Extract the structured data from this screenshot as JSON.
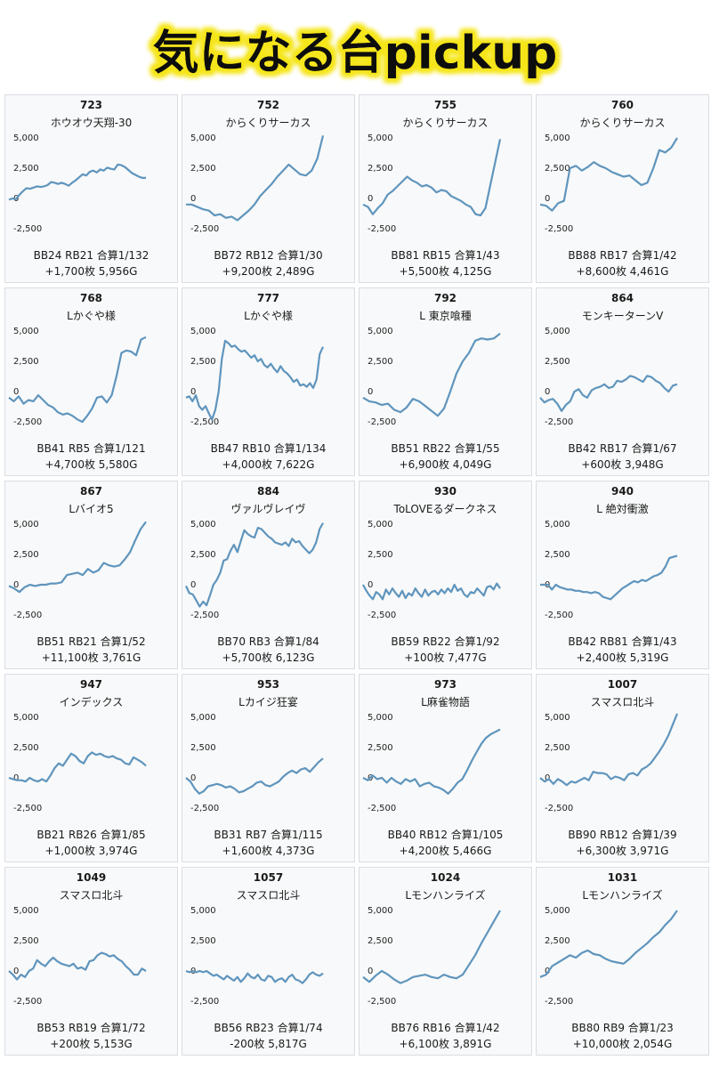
{
  "header": {
    "title": "気になる台pickup",
    "title_color": "#111111",
    "glow_color": "#f5e51a"
  },
  "style": {
    "line_color": "#5f95bd",
    "card_bg": "#f8f9fa",
    "card_border": "#d9dde2"
  },
  "chart_data": [
    {
      "type": "line",
      "machine_no": "723",
      "machine_name": "ホウオウ天翔-30",
      "summary": "BB24 RB21 合算1/132",
      "result": "+1,700枚 5,956G",
      "ylim": [
        -2500,
        5000
      ],
      "yticks": [
        "5,000",
        "2,500",
        "0",
        "-2,500"
      ],
      "values": [
        -100,
        0,
        -50,
        300,
        600,
        850,
        800,
        900,
        1000,
        950,
        1000,
        1100,
        1350,
        1300,
        1200,
        1300,
        1200,
        1050,
        1300,
        1500,
        1750,
        2000,
        1900,
        2200,
        2300,
        2150,
        2400,
        2300,
        2550,
        2450,
        2400,
        2800,
        2750,
        2600,
        2350,
        2100,
        1950,
        1800,
        1700,
        1700
      ]
    },
    {
      "type": "line",
      "machine_no": "752",
      "machine_name": "からくりサーカス",
      "summary": "BB72 RB12 合算1/30",
      "result": "+9,200枚 2,489G",
      "ylim": [
        -2500,
        5000
      ],
      "yticks": [
        "5,000",
        "2,500",
        "0",
        "-2,500"
      ],
      "values": [
        -500,
        -500,
        -700,
        -900,
        -1000,
        -1400,
        -1300,
        -1600,
        -1500,
        -1800,
        -1400,
        -1000,
        -500,
        200,
        700,
        1200,
        1800,
        2300,
        2800,
        2400,
        2000,
        1900,
        2300,
        3300,
        5200
      ]
    },
    {
      "type": "line",
      "machine_no": "755",
      "machine_name": "からくりサーカス",
      "summary": "BB81 RB15 合算1/43",
      "result": "+5,500枚 4,125G",
      "ylim": [
        -2500,
        5000
      ],
      "yticks": [
        "5,000",
        "2,500",
        "0",
        "-2,500"
      ],
      "values": [
        -500,
        -700,
        -1300,
        -800,
        -400,
        300,
        600,
        1000,
        1400,
        1800,
        1500,
        1300,
        1000,
        1100,
        900,
        500,
        700,
        600,
        200,
        0,
        -200,
        -500,
        -700,
        -1300,
        -1400,
        -800,
        1100,
        3000,
        4900
      ]
    },
    {
      "type": "line",
      "machine_no": "760",
      "machine_name": "からくりサーカス",
      "summary": "BB88 RB17 合算1/42",
      "result": "+8,600枚 4,461G",
      "ylim": [
        -2500,
        5000
      ],
      "yticks": [
        "5,000",
        "2,500",
        "0",
        "-2,500"
      ],
      "values": [
        -500,
        -600,
        -1000,
        -400,
        -200,
        2500,
        2700,
        2300,
        2600,
        3000,
        2700,
        2500,
        2200,
        2000,
        1800,
        1900,
        1500,
        1100,
        1300,
        2500,
        4000,
        3800,
        4200,
        5000
      ]
    },
    {
      "type": "line",
      "machine_no": "768",
      "machine_name": "Lかぐや様",
      "summary": "BB41 RB5 合算1/121",
      "result": "+4,700枚 5,580G",
      "ylim": [
        -2500,
        5000
      ],
      "yticks": [
        "5,000",
        "2,500",
        "0",
        "-2,500"
      ],
      "values": [
        -500,
        -800,
        -400,
        -1000,
        -700,
        -800,
        -300,
        -700,
        -1100,
        -1300,
        -1700,
        -1900,
        -1800,
        -2000,
        -2300,
        -2500,
        -2000,
        -1400,
        -500,
        -400,
        -900,
        -300,
        1300,
        3200,
        3400,
        3300,
        3000,
        4300,
        4500
      ]
    },
    {
      "type": "line",
      "machine_no": "777",
      "machine_name": "Lかぐや様",
      "summary": "BB47 RB10 合算1/134",
      "result": "+4,000枚 7,622G",
      "ylim": [
        -2500,
        5000
      ],
      "yticks": [
        "5,000",
        "2,500",
        "0",
        "-2,500"
      ],
      "values": [
        -500,
        -400,
        -800,
        -300,
        -1200,
        -1500,
        -1200,
        -1800,
        -2300,
        -1500,
        0,
        2700,
        4200,
        4000,
        3700,
        3800,
        3500,
        3300,
        3400,
        3100,
        2800,
        3000,
        2500,
        2700,
        2200,
        2000,
        2300,
        1900,
        1600,
        2100,
        1700,
        1500,
        1200,
        800,
        1000,
        500,
        600,
        400,
        700,
        300,
        1000,
        3100,
        3700
      ]
    },
    {
      "type": "line",
      "machine_no": "792",
      "machine_name": "L 東京喰種",
      "summary": "BB51 RB22 合算1/55",
      "result": "+6,900枚 4,049G",
      "ylim": [
        -2500,
        5000
      ],
      "yticks": [
        "5,000",
        "2,500",
        "0",
        "-2,500"
      ],
      "values": [
        -500,
        -800,
        -900,
        -1100,
        -1000,
        -1500,
        -1700,
        -1300,
        -600,
        -800,
        -1200,
        -1600,
        -2000,
        -1400,
        0,
        1500,
        2500,
        3200,
        4200,
        4400,
        4300,
        4400,
        4800
      ]
    },
    {
      "type": "line",
      "machine_no": "864",
      "machine_name": "モンキーターンV",
      "summary": "BB42 RB17 合算1/67",
      "result": "+600枚 3,948G",
      "ylim": [
        -2500,
        5000
      ],
      "yticks": [
        "5,000",
        "2,500",
        "0",
        "-2,500"
      ],
      "values": [
        -500,
        -900,
        -700,
        -600,
        -1000,
        -1600,
        -1100,
        -800,
        0,
        200,
        -300,
        -500,
        100,
        300,
        400,
        600,
        300,
        400,
        900,
        800,
        1000,
        1300,
        1200,
        1000,
        800,
        1300,
        1200,
        900,
        700,
        300,
        0,
        500,
        600
      ]
    },
    {
      "type": "line",
      "machine_no": "867",
      "machine_name": "Lバイオ5",
      "summary": "BB51 RB21 合算1/52",
      "result": "+11,100枚 3,761G",
      "ylim": [
        -2500,
        5000
      ],
      "yticks": [
        "5,000",
        "2,500",
        "0",
        "-2,500"
      ],
      "values": [
        -100,
        -300,
        -600,
        -200,
        0,
        -100,
        0,
        0,
        100,
        100,
        200,
        800,
        900,
        1000,
        800,
        1300,
        1000,
        1200,
        1800,
        1600,
        1500,
        1600,
        2100,
        2700,
        3700,
        4600,
        5200
      ]
    },
    {
      "type": "line",
      "machine_no": "884",
      "machine_name": "ヴァルヴレイヴ",
      "summary": "BB70 RB3 合算1/84",
      "result": "+5,700枚 6,123G",
      "ylim": [
        -2500,
        5000
      ],
      "yticks": [
        "5,000",
        "2,500",
        "0",
        "-2,500"
      ],
      "values": [
        -100,
        -700,
        -800,
        -1300,
        -1800,
        -1400,
        -1700,
        -900,
        0,
        400,
        1000,
        2000,
        2100,
        2800,
        3300,
        2700,
        3600,
        4500,
        4200,
        4000,
        3900,
        4700,
        4600,
        4300,
        4000,
        3800,
        3500,
        3400,
        3300,
        3500,
        3200,
        3800,
        3500,
        3600,
        3200,
        2900,
        2600,
        2900,
        3500,
        4600,
        5100
      ]
    },
    {
      "type": "line",
      "machine_no": "930",
      "machine_name": "ToLOVEるダークネス",
      "summary": "BB59 RB22 合算1/92",
      "result": "+100枚 7,477G",
      "ylim": [
        -2500,
        5000
      ],
      "yticks": [
        "5,000",
        "2,500",
        "0",
        "-2,500"
      ],
      "values": [
        0,
        -500,
        -900,
        -1200,
        -600,
        -800,
        -1200,
        -400,
        -800,
        -300,
        -700,
        -1000,
        -500,
        -1100,
        -700,
        -900,
        -300,
        -700,
        -1000,
        -400,
        -900,
        -600,
        -500,
        -800,
        -400,
        -700,
        -300,
        -600,
        0,
        -500,
        -300,
        -800,
        -1000,
        -600,
        -700,
        -300,
        -600,
        -900,
        -200,
        -100,
        -400,
        100,
        -300
      ]
    },
    {
      "type": "line",
      "machine_no": "940",
      "machine_name": "L 絶対衝激",
      "summary": "BB42 RB81 合算1/43",
      "result": "+2,400枚 5,319G",
      "ylim": [
        -2500,
        5000
      ],
      "yticks": [
        "5,000",
        "2,500",
        "0",
        "-2,500"
      ],
      "values": [
        0,
        0,
        0,
        -400,
        0,
        -200,
        -300,
        -400,
        -400,
        -500,
        -500,
        -600,
        -600,
        -700,
        -600,
        -700,
        -1000,
        -1100,
        -1200,
        -900,
        -600,
        -300,
        -100,
        100,
        300,
        200,
        400,
        300,
        500,
        700,
        800,
        1000,
        1500,
        2200,
        2300,
        2400
      ]
    },
    {
      "type": "line",
      "machine_no": "947",
      "machine_name": "インデックス",
      "summary": "BB21 RB26 合算1/85",
      "result": "+1,000枚 3,974G",
      "ylim": [
        -2500,
        5000
      ],
      "yticks": [
        "5,000",
        "2,500",
        "0",
        "-2,500"
      ],
      "values": [
        0,
        -100,
        -200,
        -200,
        -300,
        0,
        -200,
        -300,
        -100,
        -300,
        200,
        800,
        1200,
        1000,
        1500,
        2000,
        1800,
        1400,
        1200,
        1800,
        2100,
        1900,
        2000,
        1800,
        1700,
        1800,
        1600,
        1500,
        1200,
        1100,
        1700,
        1500,
        1300,
        1000
      ]
    },
    {
      "type": "line",
      "machine_no": "953",
      "machine_name": "Lカイジ狂宴",
      "summary": "BB31 RB7 合算1/115",
      "result": "+1,600枚 4,373G",
      "ylim": [
        -2500,
        5000
      ],
      "yticks": [
        "5,000",
        "2,500",
        "0",
        "-2,500"
      ],
      "values": [
        0,
        -300,
        -900,
        -1300,
        -1100,
        -700,
        -600,
        -500,
        -600,
        -800,
        -700,
        -900,
        -1200,
        -1100,
        -900,
        -700,
        -400,
        -300,
        -600,
        -700,
        -500,
        -300,
        100,
        400,
        600,
        400,
        700,
        800,
        500,
        900,
        1300,
        1600
      ]
    },
    {
      "type": "line",
      "machine_no": "973",
      "machine_name": "L麻雀物語",
      "summary": "BB40 RB12 合算1/105",
      "result": "+4,200枚 5,466G",
      "ylim": [
        -2500,
        5000
      ],
      "yticks": [
        "5,000",
        "2,500",
        "0",
        "-2,500"
      ],
      "values": [
        0,
        -200,
        200,
        -100,
        0,
        -400,
        0,
        -300,
        -500,
        -100,
        -300,
        -100,
        -700,
        -500,
        -400,
        -700,
        -800,
        -1000,
        -1300,
        -900,
        -400,
        -100,
        600,
        1400,
        2100,
        2800,
        3300,
        3600,
        3800,
        4000
      ]
    },
    {
      "type": "line",
      "machine_no": "1007",
      "machine_name": "スマスロ北斗",
      "summary": "BB90 RB12 合算1/39",
      "result": "+6,300枚 3,971G",
      "ylim": [
        -2500,
        5000
      ],
      "yticks": [
        "5,000",
        "2,500",
        "0",
        "-2,500"
      ],
      "values": [
        0,
        -300,
        -100,
        -500,
        -100,
        -300,
        -600,
        -300,
        -400,
        -200,
        0,
        -200,
        500,
        400,
        400,
        300,
        -100,
        100,
        0,
        -200,
        300,
        400,
        200,
        700,
        900,
        1200,
        1700,
        2200,
        2800,
        3500,
        4400,
        5300
      ]
    },
    {
      "type": "line",
      "machine_no": "1049",
      "machine_name": "スマスロ北斗",
      "summary": "BB53 RB19 合算1/72",
      "result": "+200枚 5,153G",
      "ylim": [
        -2500,
        5000
      ],
      "yticks": [
        "5,000",
        "2,500",
        "0",
        "-2,500"
      ],
      "values": [
        0,
        -300,
        -700,
        -300,
        -500,
        0,
        200,
        900,
        600,
        400,
        800,
        1100,
        800,
        600,
        500,
        400,
        600,
        200,
        300,
        100,
        800,
        900,
        1300,
        1500,
        1400,
        1200,
        1300,
        1000,
        800,
        400,
        100,
        -300,
        -300,
        200,
        0
      ]
    },
    {
      "type": "line",
      "machine_no": "1057",
      "machine_name": "スマスロ北斗",
      "summary": "BB56 RB23 合算1/74",
      "result": "-200枚 5,817G",
      "ylim": [
        -2500,
        5000
      ],
      "yticks": [
        "5,000",
        "2,500",
        "0",
        "-2,500"
      ],
      "values": [
        0,
        -100,
        0,
        -100,
        0,
        -100,
        0,
        -200,
        -400,
        -300,
        -500,
        -700,
        -400,
        -600,
        -800,
        -500,
        -900,
        -600,
        -200,
        -500,
        -600,
        -300,
        -700,
        -800,
        -400,
        -500,
        -900,
        -700,
        -600,
        -900,
        -500,
        -300,
        -700,
        -800,
        -1000,
        -700,
        -300,
        -100,
        -300,
        -400,
        -200
      ]
    },
    {
      "type": "line",
      "machine_no": "1024",
      "machine_name": "Lモンハンライズ",
      "summary": "BB76 RB16 合算1/42",
      "result": "+6,100枚 3,891G",
      "ylim": [
        -2500,
        5000
      ],
      "yticks": [
        "5,000",
        "2,500",
        "0",
        "-2,500"
      ],
      "values": [
        -500,
        -900,
        -400,
        0,
        -300,
        -700,
        -1000,
        -800,
        -500,
        -400,
        -300,
        -500,
        -600,
        -300,
        -500,
        -600,
        -300,
        500,
        1300,
        2300,
        3200,
        4100,
        5000
      ]
    },
    {
      "type": "line",
      "machine_no": "1031",
      "machine_name": "Lモンハンライズ",
      "summary": "BB80 RB9 合算1/23",
      "result": "+10,000枚 2,054G",
      "ylim": [
        -2500,
        5000
      ],
      "yticks": [
        "5,000",
        "2,500",
        "0",
        "-2,500"
      ],
      "values": [
        -500,
        -300,
        400,
        700,
        1000,
        1300,
        1100,
        1500,
        1700,
        1400,
        1300,
        1000,
        800,
        700,
        600,
        1000,
        1500,
        1900,
        2300,
        2800,
        3200,
        3800,
        4300,
        5000
      ]
    }
  ]
}
